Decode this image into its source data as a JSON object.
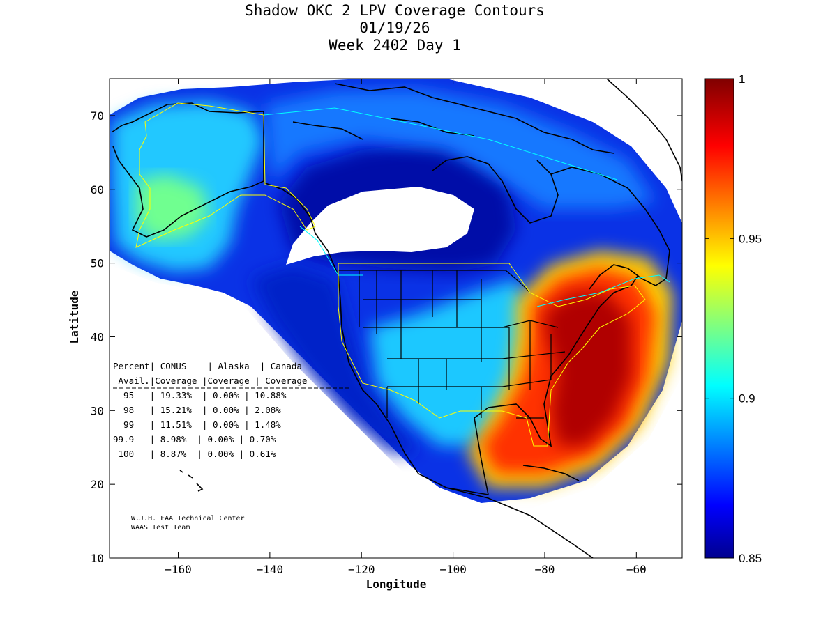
{
  "title": {
    "line1": "Shadow OKC 2 LPV Coverage Contours",
    "line2": "01/19/26",
    "line3": "Week 2402 Day 1"
  },
  "axes": {
    "xlabel": "Longitude",
    "ylabel": "Latitude",
    "xlim": [
      -175,
      -50
    ],
    "ylim": [
      10,
      75
    ],
    "xticks": [
      -160,
      -140,
      -120,
      -100,
      -80,
      -60
    ],
    "yticks": [
      10,
      20,
      30,
      40,
      50,
      60,
      70
    ]
  },
  "colorbar": {
    "colormap": "jet",
    "min": 0.85,
    "max": 1,
    "ticks": [
      {
        "value": 1,
        "label": "1"
      },
      {
        "value": 0.95,
        "label": "0.95"
      },
      {
        "value": 0.9,
        "label": "0.9"
      },
      {
        "value": 0.85,
        "label": "0.85"
      }
    ]
  },
  "table": {
    "header1": "Percent| CONUS    | Alaska  | Canada",
    "header2": " Avail.|Coverage |Coverage | Coverage",
    "rows": [
      "  95   | 19.33%  | 0.00% | 10.88%",
      "  98   | 15.21%  | 0.00% | 2.08%",
      "  99   | 11.51%  | 0.00% | 1.48%",
      "99.9   | 8.98%  | 0.00% | 0.70%",
      " 100   | 8.87%  | 0.00% | 0.61%"
    ]
  },
  "credit": {
    "line1": "W.J.H. FAA Technical Center",
    "line2": "WAAS Test Team"
  },
  "colors": {
    "jet_dark_blue": "#00008f",
    "jet_blue": "#0000ff",
    "jet_cyan": "#00ffff",
    "jet_yellow": "#ffff00",
    "jet_red": "#ff0000",
    "jet_dark_red": "#800000",
    "boundary_yellow": "#ffff00",
    "boundary_cyan": "#00ffff"
  }
}
